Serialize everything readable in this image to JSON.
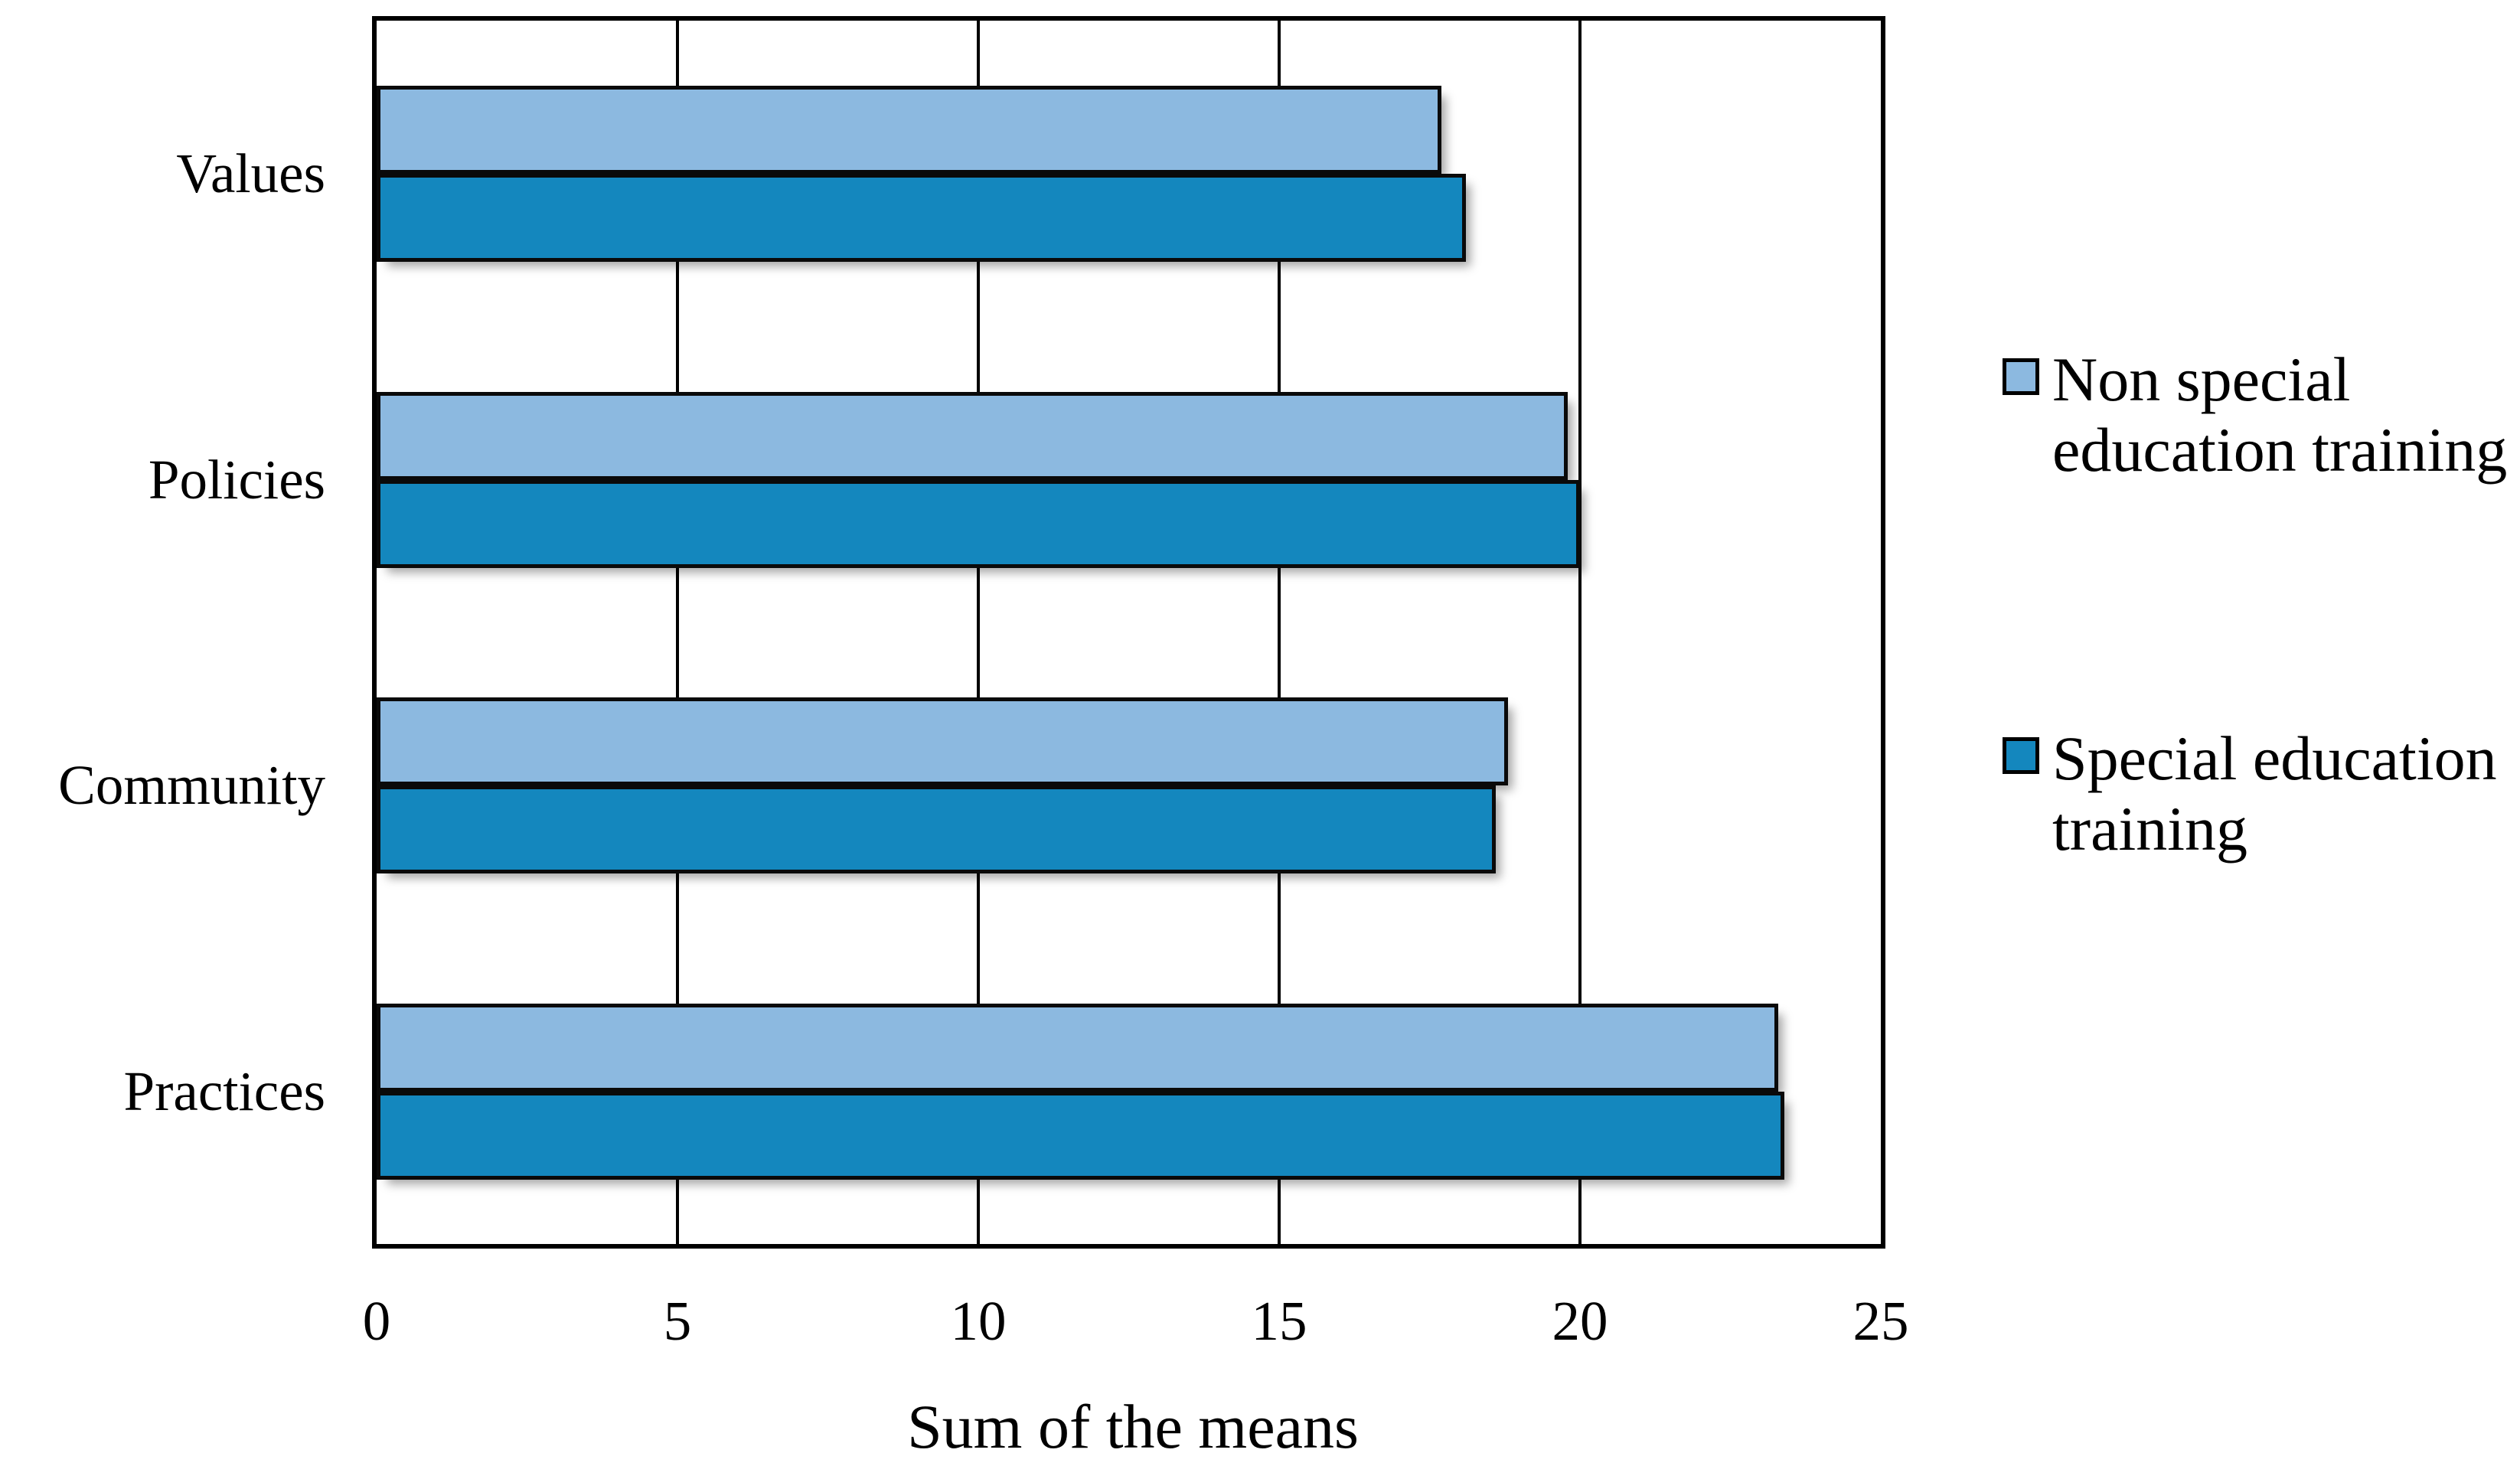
{
  "figure": {
    "background_color": "#FFFFFF",
    "text_color": "#000000",
    "axis_line_color": "#000000"
  },
  "chart_data": {
    "type": "bar",
    "orientation": "horizontal",
    "title": "",
    "xlabel": "Sum of the means",
    "ylabel": "",
    "xlim": [
      0,
      25
    ],
    "xticks": [
      0,
      5,
      10,
      15,
      20,
      25
    ],
    "grid": "vertical gridlines at each x tick, black, plot area fully framed",
    "legend_position": "right, outside plot, vertically centered",
    "categories": [
      "Values",
      "Policies",
      "Community",
      "Practices"
    ],
    "series": [
      {
        "name": "Non special education training",
        "legend_lines": "Non special\neducation training",
        "color": "#8CB9E0",
        "border_color": "#0A0A0A",
        "values": [
          17.7,
          19.8,
          18.8,
          23.3
        ]
      },
      {
        "name": "Special education training",
        "legend_lines": "Special education\ntraining",
        "color": "#1487BE",
        "border_color": "#0A0A0A",
        "values": [
          18.1,
          20.0,
          18.6,
          23.4
        ]
      }
    ]
  }
}
